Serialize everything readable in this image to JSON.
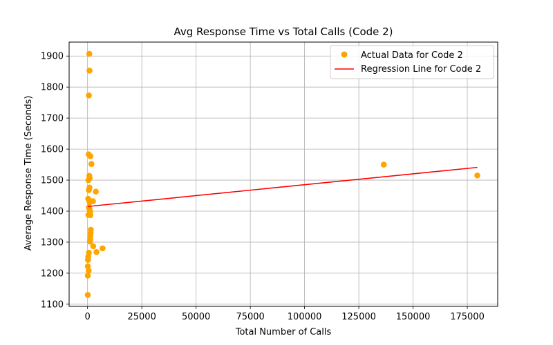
{
  "chart_data": {
    "type": "scatter",
    "title": "Avg Response Time vs Total Calls (Code 2)",
    "xlabel": "Total Number of Calls",
    "ylabel": "Average Response Time (Seconds)",
    "xlim": [
      -8500,
      189000
    ],
    "ylim": [
      1093,
      1945
    ],
    "xticks": [
      0,
      25000,
      50000,
      75000,
      100000,
      125000,
      150000,
      175000
    ],
    "yticks": [
      1100,
      1200,
      1300,
      1400,
      1500,
      1600,
      1700,
      1800,
      1900
    ],
    "grid": true,
    "legend_position": "top-right",
    "series": [
      {
        "name": "Actual Data for Code 2",
        "kind": "scatter",
        "color": "#ffa500",
        "points": [
          {
            "x": 800,
            "y": 1907
          },
          {
            "x": 900,
            "y": 1853
          },
          {
            "x": 600,
            "y": 1773
          },
          {
            "x": 500,
            "y": 1583
          },
          {
            "x": 1300,
            "y": 1577
          },
          {
            "x": 1800,
            "y": 1552
          },
          {
            "x": 800,
            "y": 1514
          },
          {
            "x": 1000,
            "y": 1506
          },
          {
            "x": 400,
            "y": 1500
          },
          {
            "x": 900,
            "y": 1476
          },
          {
            "x": 600,
            "y": 1468
          },
          {
            "x": 3800,
            "y": 1463
          },
          {
            "x": 300,
            "y": 1440
          },
          {
            "x": 700,
            "y": 1435
          },
          {
            "x": 2500,
            "y": 1432
          },
          {
            "x": 1000,
            "y": 1428
          },
          {
            "x": 600,
            "y": 1412
          },
          {
            "x": 900,
            "y": 1406
          },
          {
            "x": 1200,
            "y": 1398
          },
          {
            "x": 400,
            "y": 1388
          },
          {
            "x": 1300,
            "y": 1387
          },
          {
            "x": 1500,
            "y": 1340
          },
          {
            "x": 1400,
            "y": 1330
          },
          {
            "x": 1300,
            "y": 1320
          },
          {
            "x": 1200,
            "y": 1310
          },
          {
            "x": 1100,
            "y": 1302
          },
          {
            "x": 2600,
            "y": 1287
          },
          {
            "x": 6900,
            "y": 1280
          },
          {
            "x": 4100,
            "y": 1268
          },
          {
            "x": 600,
            "y": 1266
          },
          {
            "x": 300,
            "y": 1253
          },
          {
            "x": 200,
            "y": 1243
          },
          {
            "x": 100,
            "y": 1222
          },
          {
            "x": 500,
            "y": 1208
          },
          {
            "x": 100,
            "y": 1192
          },
          {
            "x": 100,
            "y": 1130
          },
          {
            "x": 136500,
            "y": 1550
          },
          {
            "x": 179600,
            "y": 1515
          }
        ]
      },
      {
        "name": "Regression Line for Code 2",
        "kind": "line",
        "color": "#ff0000",
        "points": [
          {
            "x": 100,
            "y": 1415
          },
          {
            "x": 179600,
            "y": 1541
          }
        ]
      }
    ]
  }
}
